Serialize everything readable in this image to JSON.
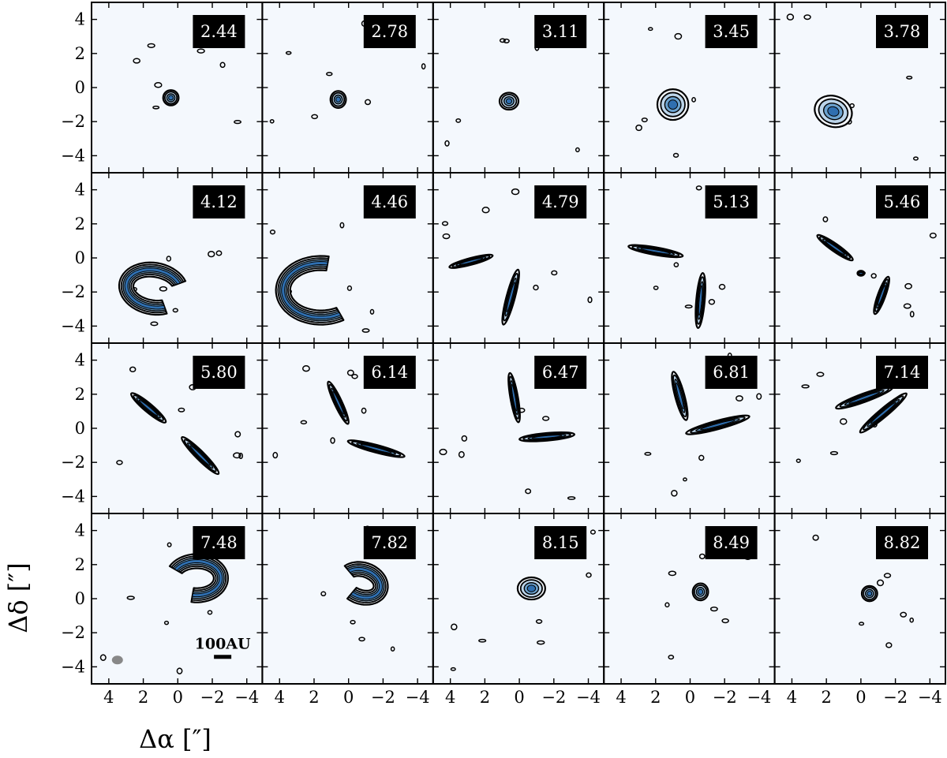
{
  "chart_data": {
    "type": "channel_map_grid",
    "rows": 4,
    "cols": 5,
    "xlabel": "Δα [″]",
    "ylabel": "Δδ [″]",
    "xlim": [
      5,
      -4.9
    ],
    "ylim": [
      -5,
      5
    ],
    "xticks": [
      4,
      2,
      0,
      -2,
      -4
    ],
    "yticks": [
      4,
      2,
      0,
      -2,
      -4
    ],
    "xtick_labels": [
      "4",
      "2",
      "0",
      "−2",
      "−4"
    ],
    "ytick_labels": [
      "4",
      "2",
      "0",
      "−2",
      "−4"
    ],
    "scale_bar_label": "100AU",
    "beam_panel": 15,
    "scale_bar_panel": 15,
    "colors": {
      "background": "#f4f8fd",
      "light": "#bcd5ea",
      "mid": "#6ba2cf",
      "dark": "#2f6fb0",
      "beam": "#888888"
    },
    "panels": [
      {
        "velocity": "2.44",
        "shape": "blob",
        "cx": 0.4,
        "cy": -0.6,
        "rx": 0.45,
        "ry": 0.45,
        "angle": 0
      },
      {
        "velocity": "2.78",
        "shape": "blob",
        "cx": 0.6,
        "cy": -0.7,
        "rx": 0.45,
        "ry": 0.5,
        "angle": 0
      },
      {
        "velocity": "3.11",
        "shape": "blob",
        "cx": 0.6,
        "cy": -0.8,
        "rx": 0.55,
        "ry": 0.5,
        "angle": 0
      },
      {
        "velocity": "3.45",
        "shape": "blob",
        "cx": 1.0,
        "cy": -1.0,
        "rx": 0.9,
        "ry": 0.9,
        "angle": 0
      },
      {
        "velocity": "3.78",
        "shape": "blob",
        "cx": 1.6,
        "cy": -1.4,
        "rx": 1.1,
        "ry": 0.9,
        "angle": -20
      },
      {
        "velocity": "4.12",
        "shape": "ring",
        "cx": 1.4,
        "cy": -1.8,
        "rx": 1.6,
        "ry": 1.1,
        "angle": -10,
        "gap_start": 300,
        "gap_end": 30
      },
      {
        "velocity": "4.46",
        "shape": "ring",
        "cx": 1.6,
        "cy": -1.9,
        "rx": 2.2,
        "ry": 1.6,
        "angle": 0,
        "gap_start": 300,
        "gap_end": 80
      },
      {
        "velocity": "4.79",
        "shape": "arcs",
        "arcs": [
          {
            "cx": 2.8,
            "cy": -0.2,
            "len": 2.6,
            "wid": 0.4,
            "angle": 15
          },
          {
            "cx": 0.5,
            "cy": -2.3,
            "len": 3.3,
            "wid": 0.5,
            "angle": 75
          }
        ]
      },
      {
        "velocity": "5.13",
        "shape": "arcs",
        "arcs": [
          {
            "cx": 2.0,
            "cy": 0.4,
            "len": 3.2,
            "wid": 0.45,
            "angle": -10
          },
          {
            "cx": -0.6,
            "cy": -2.5,
            "len": 3.2,
            "wid": 0.5,
            "angle": 85
          }
        ]
      },
      {
        "velocity": "5.46",
        "shape": "arcs",
        "arcs": [
          {
            "cx": 1.5,
            "cy": 0.6,
            "len": 2.5,
            "wid": 0.45,
            "angle": -35
          },
          {
            "cx": -1.2,
            "cy": -2.2,
            "len": 2.3,
            "wid": 0.45,
            "angle": 70
          },
          {
            "cx": 0.0,
            "cy": -0.9,
            "len": 0.4,
            "wid": 0.3,
            "angle": 0
          }
        ]
      },
      {
        "velocity": "5.80",
        "shape": "arcs",
        "arcs": [
          {
            "cx": 1.7,
            "cy": 1.2,
            "len": 2.6,
            "wid": 0.5,
            "angle": -40
          },
          {
            "cx": -1.3,
            "cy": -1.6,
            "len": 3.0,
            "wid": 0.5,
            "angle": -45
          }
        ]
      },
      {
        "velocity": "6.14",
        "shape": "arcs",
        "arcs": [
          {
            "cx": 0.6,
            "cy": 1.5,
            "len": 2.7,
            "wid": 0.45,
            "angle": -65
          },
          {
            "cx": -1.6,
            "cy": -1.2,
            "len": 3.4,
            "wid": 0.45,
            "angle": -15
          }
        ]
      },
      {
        "velocity": "6.47",
        "shape": "arcs",
        "arcs": [
          {
            "cx": 0.3,
            "cy": 1.8,
            "len": 2.9,
            "wid": 0.45,
            "angle": -80
          },
          {
            "cx": -1.6,
            "cy": -0.5,
            "len": 3.2,
            "wid": 0.45,
            "angle": 5
          }
        ]
      },
      {
        "velocity": "6.81",
        "shape": "arcs",
        "arcs": [
          {
            "cx": 0.6,
            "cy": 1.9,
            "len": 2.9,
            "wid": 0.55,
            "angle": -75
          },
          {
            "cx": -1.6,
            "cy": 0.2,
            "len": 3.8,
            "wid": 0.5,
            "angle": 15
          }
        ]
      },
      {
        "velocity": "7.14",
        "shape": "arcs",
        "arcs": [
          {
            "cx": -0.2,
            "cy": 1.8,
            "len": 3.5,
            "wid": 0.5,
            "angle": 20
          },
          {
            "cx": -1.3,
            "cy": 0.9,
            "len": 3.5,
            "wid": 0.5,
            "angle": 40
          }
        ]
      },
      {
        "velocity": "7.48",
        "shape": "ring",
        "cx": -1.1,
        "cy": 1.2,
        "rx": 1.4,
        "ry": 1.0,
        "angle": 0,
        "gap_start": 150,
        "gap_end": 260
      },
      {
        "velocity": "7.82",
        "shape": "ring",
        "cx": -0.8,
        "cy": 0.9,
        "rx": 1.1,
        "ry": 0.8,
        "angle": -20,
        "gap_start": 150,
        "gap_end": 250
      },
      {
        "velocity": "8.15",
        "shape": "blob",
        "cx": -0.7,
        "cy": 0.6,
        "rx": 0.8,
        "ry": 0.65,
        "angle": 0
      },
      {
        "velocity": "8.49",
        "shape": "blob",
        "cx": -0.6,
        "cy": 0.4,
        "rx": 0.45,
        "ry": 0.5,
        "angle": 0
      },
      {
        "velocity": "8.82",
        "shape": "blob",
        "cx": -0.5,
        "cy": 0.3,
        "rx": 0.45,
        "ry": 0.45,
        "angle": 0
      }
    ]
  }
}
